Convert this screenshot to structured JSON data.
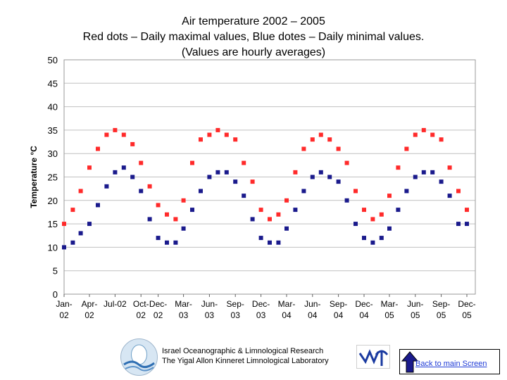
{
  "title": {
    "line1": "Air temperature 2002 – 2005",
    "line2": "Red dots – Daily maximal values, Blue dotes – Daily minimal values.",
    "line3": "(Values are hourly averages)"
  },
  "footer": {
    "institute_line1": "Israel Oceanographic & Limnological Research",
    "institute_line2": "The Yigal Allon Kinneret Limnological Laboratory",
    "back_button": "Back to main Screen"
  },
  "colors": {
    "max_series": "#ff2a2a",
    "min_series": "#1a1a8c",
    "grid": "#c0c0c0",
    "link": "#1f3bd6"
  },
  "chart_data": {
    "type": "scatter",
    "ylabel": "Temperature °C",
    "xlabel": "",
    "ylim": [
      0,
      50
    ],
    "yticks": [
      0,
      5,
      10,
      15,
      20,
      25,
      30,
      35,
      40,
      45,
      50
    ],
    "x_range": [
      "2002-01-01",
      "2005-12-31"
    ],
    "xticks": [
      {
        "label": [
          "Jan-",
          "02"
        ],
        "date": "2002-01-01"
      },
      {
        "label": [
          "Apr-",
          "02"
        ],
        "date": "2002-04-01"
      },
      {
        "label": [
          "Jul-02",
          ""
        ],
        "date": "2002-07-01"
      },
      {
        "label": [
          "Oct-",
          "02"
        ],
        "date": "2002-10-01"
      },
      {
        "label": [
          "Dec-",
          "02"
        ],
        "date": "2002-12-01"
      },
      {
        "label": [
          "Mar-",
          "03"
        ],
        "date": "2003-03-01"
      },
      {
        "label": [
          "Jun-",
          "03"
        ],
        "date": "2003-06-01"
      },
      {
        "label": [
          "Sep-",
          "03"
        ],
        "date": "2003-09-01"
      },
      {
        "label": [
          "Dec-",
          "03"
        ],
        "date": "2003-12-01"
      },
      {
        "label": [
          "Mar-",
          "04"
        ],
        "date": "2004-03-01"
      },
      {
        "label": [
          "Jun-",
          "04"
        ],
        "date": "2004-06-01"
      },
      {
        "label": [
          "Sep-",
          "04"
        ],
        "date": "2004-09-01"
      },
      {
        "label": [
          "Dec-",
          "04"
        ],
        "date": "2004-12-01"
      },
      {
        "label": [
          "Mar-",
          "05"
        ],
        "date": "2005-03-01"
      },
      {
        "label": [
          "Jun-",
          "05"
        ],
        "date": "2005-06-01"
      },
      {
        "label": [
          "Sep-",
          "05"
        ],
        "date": "2005-09-01"
      },
      {
        "label": [
          "Dec-",
          "05"
        ],
        "date": "2005-12-01"
      }
    ],
    "grid": true,
    "legend": "none",
    "series": [
      {
        "key": "max",
        "x": [
          "2002-01-01",
          "2002-02-01",
          "2002-03-01",
          "2002-04-01",
          "2002-05-01",
          "2002-06-01",
          "2002-07-01",
          "2002-08-01",
          "2002-09-01",
          "2002-10-01",
          "2002-11-01",
          "2002-12-01",
          "2003-01-01",
          "2003-02-01",
          "2003-03-01",
          "2003-04-01",
          "2003-05-01",
          "2003-06-01",
          "2003-07-01",
          "2003-08-01",
          "2003-09-01",
          "2003-10-01",
          "2003-11-01",
          "2003-12-01",
          "2004-01-01",
          "2004-02-01",
          "2004-03-01",
          "2004-04-01",
          "2004-05-01",
          "2004-06-01",
          "2004-07-01",
          "2004-08-01",
          "2004-09-01",
          "2004-10-01",
          "2004-11-01",
          "2004-12-01",
          "2005-01-01",
          "2005-02-01",
          "2005-03-01",
          "2005-04-01",
          "2005-05-01",
          "2005-06-01",
          "2005-07-01",
          "2005-08-01",
          "2005-09-01",
          "2005-10-01",
          "2005-11-01",
          "2005-12-01"
        ],
        "y": [
          15,
          18,
          22,
          27,
          31,
          34,
          35,
          34,
          32,
          28,
          23,
          19,
          17,
          16,
          20,
          28,
          33,
          34,
          35,
          34,
          33,
          28,
          24,
          18,
          16,
          17,
          20,
          26,
          31,
          33,
          34,
          33,
          31,
          28,
          22,
          18,
          16,
          17,
          21,
          27,
          31,
          34,
          35,
          34,
          33,
          27,
          22,
          18
        ]
      },
      {
        "key": "min",
        "x": [
          "2002-01-01",
          "2002-02-01",
          "2002-03-01",
          "2002-04-01",
          "2002-05-01",
          "2002-06-01",
          "2002-07-01",
          "2002-08-01",
          "2002-09-01",
          "2002-10-01",
          "2002-11-01",
          "2002-12-01",
          "2003-01-01",
          "2003-02-01",
          "2003-03-01",
          "2003-04-01",
          "2003-05-01",
          "2003-06-01",
          "2003-07-01",
          "2003-08-01",
          "2003-09-01",
          "2003-10-01",
          "2003-11-01",
          "2003-12-01",
          "2004-01-01",
          "2004-02-01",
          "2004-03-01",
          "2004-04-01",
          "2004-05-01",
          "2004-06-01",
          "2004-07-01",
          "2004-08-01",
          "2004-09-01",
          "2004-10-01",
          "2004-11-01",
          "2004-12-01",
          "2005-01-01",
          "2005-02-01",
          "2005-03-01",
          "2005-04-01",
          "2005-05-01",
          "2005-06-01",
          "2005-07-01",
          "2005-08-01",
          "2005-09-01",
          "2005-10-01",
          "2005-11-01",
          "2005-12-01"
        ],
        "y": [
          10,
          11,
          13,
          15,
          19,
          23,
          26,
          27,
          25,
          22,
          16,
          12,
          11,
          11,
          14,
          18,
          22,
          25,
          26,
          26,
          24,
          21,
          16,
          12,
          11,
          11,
          14,
          18,
          22,
          25,
          26,
          25,
          24,
          20,
          15,
          12,
          11,
          12,
          14,
          18,
          22,
          25,
          26,
          26,
          24,
          21,
          15,
          15
        ]
      }
    ]
  }
}
